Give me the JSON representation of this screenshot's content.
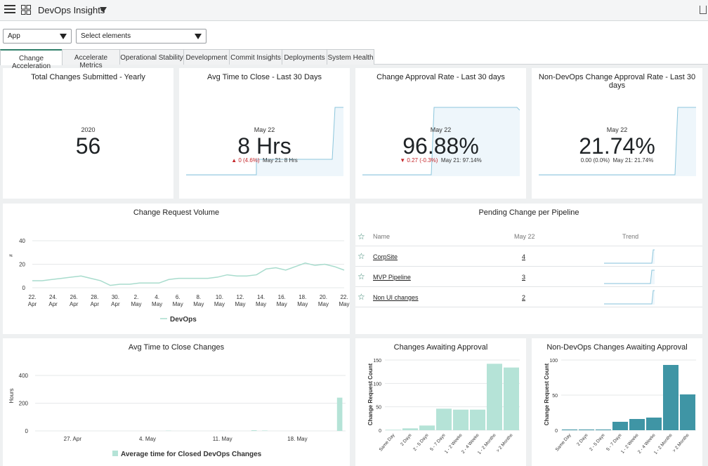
{
  "header": {
    "title": "DevOps Insights"
  },
  "filters": {
    "app": {
      "value": "App"
    },
    "elements": {
      "value": "Select elements"
    }
  },
  "tabs": [
    {
      "label": "Change Acceleration",
      "active": true
    },
    {
      "label": "Accelerate Metrics"
    },
    {
      "label": "Operational Stability"
    },
    {
      "label": "Development"
    },
    {
      "label": "Commit Insights"
    },
    {
      "label": "Deployments"
    },
    {
      "label": "System Health"
    }
  ],
  "kpis": {
    "total_changes": {
      "title": "Total Changes Submitted - Yearly",
      "date": "2020",
      "value": "56"
    },
    "avg_time": {
      "title": "Avg Time to Close - Last 30 Days",
      "date": "May 22",
      "value": "8 Hrs",
      "delta": "▲ 0 (4.6%)",
      "prev": "May 21: 8 Hrs"
    },
    "approval_rate": {
      "title": "Change Approval Rate - Last 30 days",
      "date": "May 22",
      "value": "96.88%",
      "delta": "▼ 0.27 (-0.3%)",
      "prev": "May 21: 97.14%"
    },
    "nondevops_rate": {
      "title": "Non-DevOps Change Approval Rate - Last 30 days",
      "date": "May 22",
      "value": "21.74%",
      "delta": "0.00 (0.0%)",
      "prev": "May 21: 21.74%"
    }
  },
  "volume_card": {
    "title": "Change Request Volume"
  },
  "pending": {
    "title": "Pending Change per Pipeline",
    "headers": {
      "name": "Name",
      "date": "May 22",
      "trend": "Trend"
    },
    "rows": [
      {
        "name": "CorpSite",
        "value": "4"
      },
      {
        "name": "MVP Pipeline",
        "value": "3"
      },
      {
        "name": "Non UI changes",
        "value": "2"
      }
    ]
  },
  "avgclose_card": {
    "title": "Avg Time to Close Changes"
  },
  "awaiting_card": {
    "title": "Changes Awaiting Approval"
  },
  "nondevops_card": {
    "title": "Non-DevOps Changes Awaiting Approval"
  },
  "colors": {
    "accent": "#2f7f6a",
    "line": "#a8dccd",
    "teal": "#3f95a5",
    "mint": "#b5e3d7",
    "red": "#c5262a"
  },
  "chart_data": [
    {
      "id": "volume",
      "type": "line",
      "title": "Change Request Volume",
      "ylabel": "#",
      "ylim": [
        0,
        40
      ],
      "yticks": [
        0,
        20,
        40
      ],
      "x_tick_labels": [
        [
          "22.",
          "Apr"
        ],
        [
          "24.",
          "Apr"
        ],
        [
          "26.",
          "Apr"
        ],
        [
          "28.",
          "Apr"
        ],
        [
          "30.",
          "Apr"
        ],
        [
          "2.",
          "May"
        ],
        [
          "4.",
          "May"
        ],
        [
          "6.",
          "May"
        ],
        [
          "8.",
          "May"
        ],
        [
          "10.",
          "May"
        ],
        [
          "12.",
          "May"
        ],
        [
          "14.",
          "May"
        ],
        [
          "16.",
          "May"
        ],
        [
          "18.",
          "May"
        ],
        [
          "20.",
          "May"
        ],
        [
          "22.",
          "May"
        ]
      ],
      "series": [
        {
          "name": "DevOps",
          "values": [
            6,
            6,
            7,
            8,
            9,
            10,
            8,
            6,
            2,
            3,
            3,
            4,
            4,
            4,
            7,
            8,
            8,
            8,
            8,
            9,
            11,
            10,
            10,
            11,
            16,
            17,
            15,
            18,
            21,
            19,
            20,
            18,
            15
          ]
        }
      ],
      "grid": true,
      "legend": "bottom"
    },
    {
      "id": "avgclose",
      "type": "bar",
      "title": "Avg Time to Close Changes",
      "ylabel": "Hours",
      "ylim": [
        0,
        400
      ],
      "yticks": [
        0,
        200,
        400
      ],
      "x_tick_labels": [
        "27. Apr",
        "4. May",
        "11. May",
        "18. May"
      ],
      "series": [
        {
          "name": "Average time for Closed DevOps Changes",
          "values": [
            2,
            0,
            1,
            5,
            3,
            240
          ]
        }
      ],
      "grid": true,
      "legend": "bottom"
    },
    {
      "id": "awaiting",
      "type": "bar",
      "title": "Changes Awaiting Approval",
      "ylabel": "Change Request Count",
      "ylim": [
        0,
        150
      ],
      "yticks": [
        0,
        50,
        100,
        150
      ],
      "categories": [
        "Same Day",
        "2 Days",
        "2 - 5 Days",
        "5 - 7 Days",
        "1 - 2 Weeks",
        "2 - 4 Weeks",
        "1 - 2 Months",
        "> 2 Months"
      ],
      "values": [
        1,
        4,
        10,
        46,
        44,
        44,
        142,
        134
      ]
    },
    {
      "id": "nondevops",
      "type": "bar",
      "title": "Non-DevOps Changes Awaiting Approval",
      "ylabel": "Change Request Count",
      "ylim": [
        0,
        100
      ],
      "yticks": [
        0,
        50,
        100
      ],
      "categories": [
        "Same Day",
        "2 Days",
        "2 - 5 Days",
        "5 - 7 Days",
        "1 - 2 Weeks",
        "2 - 4 Weeks",
        "1 - 2 Months",
        "> 2 Months"
      ],
      "values": [
        1,
        1,
        1,
        12,
        16,
        18,
        93,
        51
      ]
    }
  ]
}
